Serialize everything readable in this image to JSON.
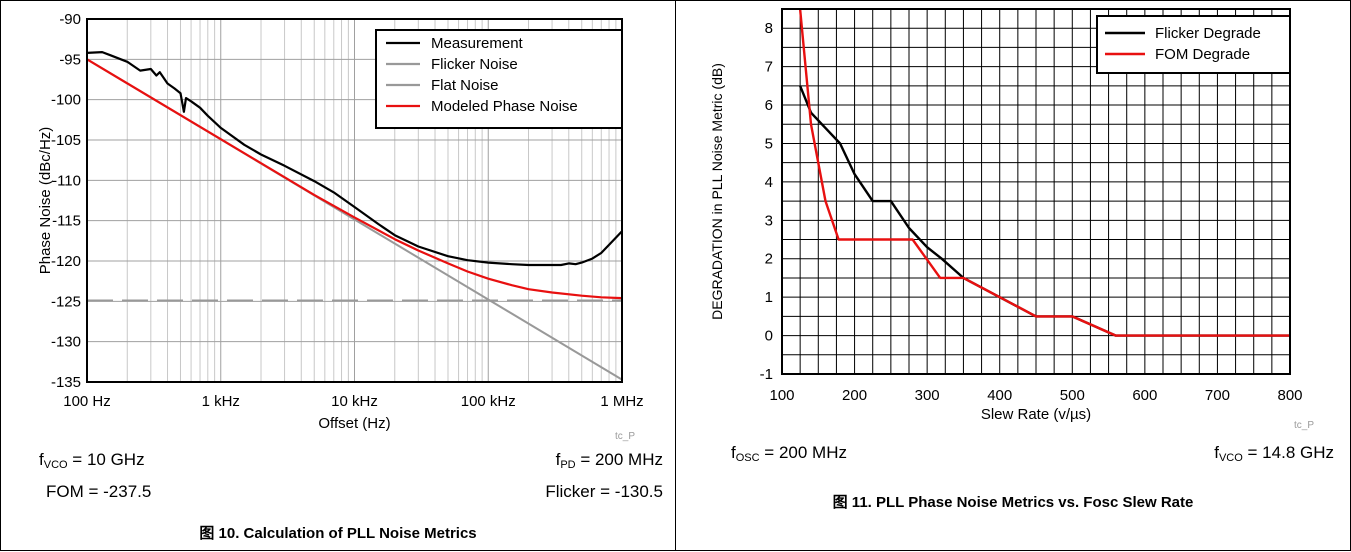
{
  "charts": [
    {
      "caption": "图 10. Calculation of PLL Noise Metrics",
      "watermark": "tc_P",
      "info": {
        "fvco_label": "f",
        "fvco_sub": "VCO",
        "fvco_value": " = 10 GHz",
        "fom": "FOM = -237.5",
        "fpd_label": "f",
        "fpd_sub": "PD",
        "fpd_value": " = 200 MHz",
        "flicker": "Flicker = -130.5"
      }
    },
    {
      "caption": "图 11. PLL Phase Noise Metrics vs. Fosc Slew Rate",
      "watermark": "tc_P",
      "info": {
        "fosc_label": "f",
        "fosc_sub": "OSC",
        "fosc_value": " = 200 MHz",
        "fvco_label": "f",
        "fvco_sub": "VCO",
        "fvco_value": " = 14.8 GHz"
      }
    }
  ],
  "chart_data": [
    {
      "type": "line",
      "xlabel": "Offset (Hz)",
      "ylabel": "Phase Noise (dBc/Hz)",
      "xscale": "log",
      "xlim": [
        100,
        1000000
      ],
      "ylim": [
        -135,
        -90
      ],
      "xticks": [
        100,
        1000,
        10000,
        100000,
        1000000
      ],
      "xtick_labels": [
        "100 Hz",
        "1 kHz",
        "10 kHz",
        "100 kHz",
        "1 MHz"
      ],
      "yticks": [
        -135,
        -130,
        -125,
        -120,
        -115,
        -110,
        -105,
        -100,
        -95,
        -90
      ],
      "ytick_labels": [
        "-135",
        "-130",
        "-125",
        "-120",
        "-115",
        "-110",
        "-105",
        "-100",
        "-95",
        "-90"
      ],
      "grid": true,
      "legend": "top-right",
      "series": [
        {
          "name": "Measurement",
          "color": "#000000",
          "dash": "none",
          "x": [
            100,
            130,
            150,
            200,
            250,
            300,
            330,
            350,
            400,
            450,
            500,
            530,
            550,
            600,
            700,
            800,
            1000,
            1500,
            2000,
            3000,
            5000,
            7000,
            10000,
            15000,
            20000,
            30000,
            50000,
            70000,
            100000,
            150000,
            200000,
            250000,
            300000,
            350000,
            400000,
            450000,
            500000,
            600000,
            700000,
            800000,
            1000000
          ],
          "y": [
            -94.2,
            -94.1,
            -94.5,
            -95.3,
            -96.4,
            -96.2,
            -97.0,
            -96.6,
            -98.0,
            -98.6,
            -99.2,
            -101.5,
            -99.8,
            -100.2,
            -101.0,
            -102.0,
            -103.5,
            -105.6,
            -106.8,
            -108.2,
            -110.1,
            -111.5,
            -113.3,
            -115.4,
            -116.8,
            -118.2,
            -119.4,
            -119.9,
            -120.2,
            -120.4,
            -120.5,
            -120.5,
            -120.5,
            -120.5,
            -120.3,
            -120.4,
            -120.2,
            -119.7,
            -119.0,
            -118.0,
            -116.3
          ]
        },
        {
          "name": "Flicker Noise",
          "color": "#999999",
          "dash": "none",
          "x": [
            100,
            1000000
          ],
          "y": [
            -95.0,
            -134.7
          ]
        },
        {
          "name": "Flat Noise",
          "color": "#999999",
          "dash": "dashed",
          "x": [
            100,
            1000000
          ],
          "y": [
            -124.9,
            -124.9
          ]
        },
        {
          "name": "Modeled Phase Noise",
          "color": "#e81010",
          "dash": "none",
          "x": [
            100,
            1000,
            5000,
            10000,
            20000,
            30000,
            50000,
            70000,
            100000,
            150000,
            200000,
            300000,
            500000,
            700000,
            1000000
          ],
          "y": [
            -95.0,
            -104.9,
            -111.8,
            -114.6,
            -117.3,
            -118.7,
            -120.3,
            -121.3,
            -122.2,
            -123.0,
            -123.5,
            -123.9,
            -124.3,
            -124.5,
            -124.6
          ]
        }
      ]
    },
    {
      "type": "line",
      "xlabel": "Slew Rate (v/µs)",
      "ylabel": "DEGRADATION in PLL Noise Metric (dB)",
      "xlim": [
        100,
        800
      ],
      "ylim": [
        -1,
        8.5
      ],
      "xticks": [
        100,
        200,
        300,
        400,
        500,
        600,
        700,
        800
      ],
      "xtick_labels": [
        "100",
        "200",
        "300",
        "400",
        "500",
        "600",
        "700",
        "800"
      ],
      "yticks": [
        -1,
        0,
        1,
        2,
        3,
        4,
        5,
        6,
        7,
        8
      ],
      "ytick_labels": [
        "-1",
        "0",
        "1",
        "2",
        "3",
        "4",
        "5",
        "6",
        "7",
        "8"
      ],
      "grid": true,
      "legend": "top-right",
      "series": [
        {
          "name": "Flicker Degrade",
          "color": "#000000",
          "x": [
            125,
            140,
            160,
            180,
            200,
            225,
            250,
            275,
            300,
            320,
            350,
            400,
            450,
            500,
            560,
            600,
            700,
            800
          ],
          "y": [
            6.5,
            5.8,
            5.4,
            5.0,
            4.2,
            3.5,
            3.5,
            2.8,
            2.3,
            2.0,
            1.5,
            1.0,
            0.5,
            0.5,
            0.0,
            0.0,
            0.0,
            0.0
          ]
        },
        {
          "name": "FOM Degrade",
          "color": "#e81010",
          "x": [
            125,
            140,
            160,
            178,
            200,
            280,
            318,
            350,
            450,
            500,
            560,
            800
          ],
          "y": [
            8.5,
            5.5,
            3.5,
            2.5,
            2.5,
            2.5,
            1.5,
            1.5,
            0.5,
            0.5,
            0.0,
            0.0
          ]
        }
      ]
    }
  ]
}
